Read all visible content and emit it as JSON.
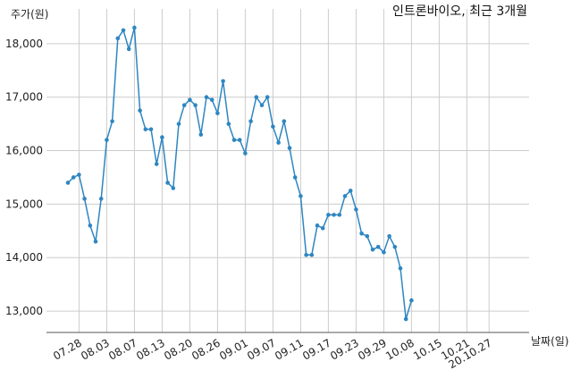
{
  "chart_data": {
    "type": "line",
    "title": "인트론바이오, 최근 3개월",
    "xlabel": "날짜(일)",
    "ylabel": "주가(원)",
    "ylim": [
      12600,
      18650
    ],
    "yticks": [
      13000,
      14000,
      15000,
      16000,
      17000,
      18000
    ],
    "ytick_labels": [
      "13,000",
      "14,000",
      "15,000",
      "16,000",
      "17,000",
      "18,000"
    ],
    "x_tick_labels": [
      "07.28",
      "08.03",
      "08.07",
      "08.13",
      "08.20",
      "08.26",
      "09.01",
      "09.07",
      "09.11",
      "09.17",
      "09.23",
      "09.29",
      "10.08",
      "10.15",
      "10.21",
      "20.10.27"
    ],
    "x_tick_positions": [
      2,
      7,
      12,
      17,
      22,
      27,
      32,
      37,
      42,
      47,
      52,
      57,
      62,
      67,
      72,
      76
    ],
    "grid": true,
    "line_color": "#2e86c1",
    "series": [
      {
        "values": [
          15400,
          15500,
          15550,
          15100,
          14600,
          14300,
          15100,
          16200,
          16550,
          18100,
          18250,
          17900,
          18300,
          16750,
          16400,
          16400,
          15750,
          16250,
          15400,
          15300,
          16500,
          16850,
          16950,
          16850,
          16300,
          17000,
          16950,
          16700,
          17300,
          16500,
          16200,
          16200,
          15950,
          16550,
          17000,
          16850,
          17000,
          16450,
          16150,
          16550,
          16050,
          15500,
          15150,
          14050,
          14050,
          14600,
          14550,
          14800,
          14800,
          14800,
          15150,
          15250,
          14900,
          14450,
          14400,
          14150,
          14200,
          14100,
          14400,
          14200,
          13800,
          12850,
          13200
        ]
      }
    ]
  }
}
